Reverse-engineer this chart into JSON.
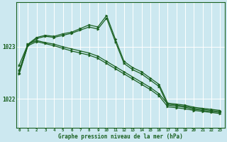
{
  "background_color": "#cce8f0",
  "plot_bg_color": "#cce8f0",
  "grid_color": "#ffffff",
  "line_color": "#1a6020",
  "marker_color": "#1a6020",
  "xlabel": "Graphe pression niveau de la mer (hPa)",
  "yticks": [
    1022,
    1023
  ],
  "ylim": [
    1021.45,
    1023.85
  ],
  "xlim": [
    -0.3,
    23.5
  ],
  "xticks": [
    0,
    1,
    2,
    3,
    4,
    5,
    6,
    7,
    8,
    9,
    10,
    11,
    12,
    13,
    14,
    15,
    16,
    17,
    18,
    19,
    20,
    21,
    22,
    23
  ],
  "line1_x": [
    0,
    1,
    2,
    3,
    4,
    5,
    6,
    7,
    8,
    9,
    10,
    11,
    12,
    13,
    14,
    15,
    16,
    17,
    18,
    19,
    20,
    21,
    22,
    23
  ],
  "line1_y": [
    1022.65,
    1023.05,
    1023.12,
    1023.08,
    1023.05,
    1023.0,
    1022.96,
    1022.92,
    1022.88,
    1022.82,
    1022.72,
    1022.62,
    1022.52,
    1022.42,
    1022.32,
    1022.22,
    1022.1,
    1021.9,
    1021.88,
    1021.86,
    1021.82,
    1021.8,
    1021.78,
    1021.76
  ],
  "line2_x": [
    0,
    1,
    2,
    3,
    4,
    5,
    6,
    7,
    8,
    9,
    10,
    11,
    12,
    13,
    14,
    15,
    16,
    17,
    18,
    19,
    20,
    21,
    22,
    23
  ],
  "line2_y": [
    1022.5,
    1023.02,
    1023.1,
    1023.06,
    1023.02,
    1022.97,
    1022.92,
    1022.88,
    1022.84,
    1022.78,
    1022.68,
    1022.58,
    1022.48,
    1022.38,
    1022.28,
    1022.18,
    1022.06,
    1021.85,
    1021.83,
    1021.81,
    1021.78,
    1021.76,
    1021.74,
    1021.72
  ],
  "line3_x": [
    0,
    1,
    2,
    3,
    4,
    5,
    6,
    7,
    8,
    9,
    10,
    11,
    12,
    13,
    14,
    15,
    16,
    17,
    18,
    19,
    20,
    21,
    22,
    23
  ],
  "line3_y": [
    1022.55,
    1023.05,
    1023.18,
    1023.22,
    1023.2,
    1023.25,
    1023.28,
    1023.35,
    1023.42,
    1023.38,
    1023.6,
    1023.15,
    1022.72,
    1022.6,
    1022.52,
    1022.4,
    1022.28,
    1021.92,
    1021.9,
    1021.88,
    1021.84,
    1021.82,
    1021.8,
    1021.78
  ],
  "line4_x": [
    0,
    1,
    2,
    3,
    4,
    5,
    6,
    7,
    8,
    9,
    10,
    11,
    12,
    13,
    14,
    15,
    16,
    17,
    18,
    19,
    20,
    21,
    22,
    23
  ],
  "line4_y": [
    1022.48,
    1023.03,
    1023.16,
    1023.2,
    1023.18,
    1023.22,
    1023.26,
    1023.32,
    1023.38,
    1023.34,
    1023.55,
    1023.1,
    1022.68,
    1022.56,
    1022.48,
    1022.36,
    1022.24,
    1021.88,
    1021.86,
    1021.84,
    1021.8,
    1021.78,
    1021.76,
    1021.74
  ]
}
